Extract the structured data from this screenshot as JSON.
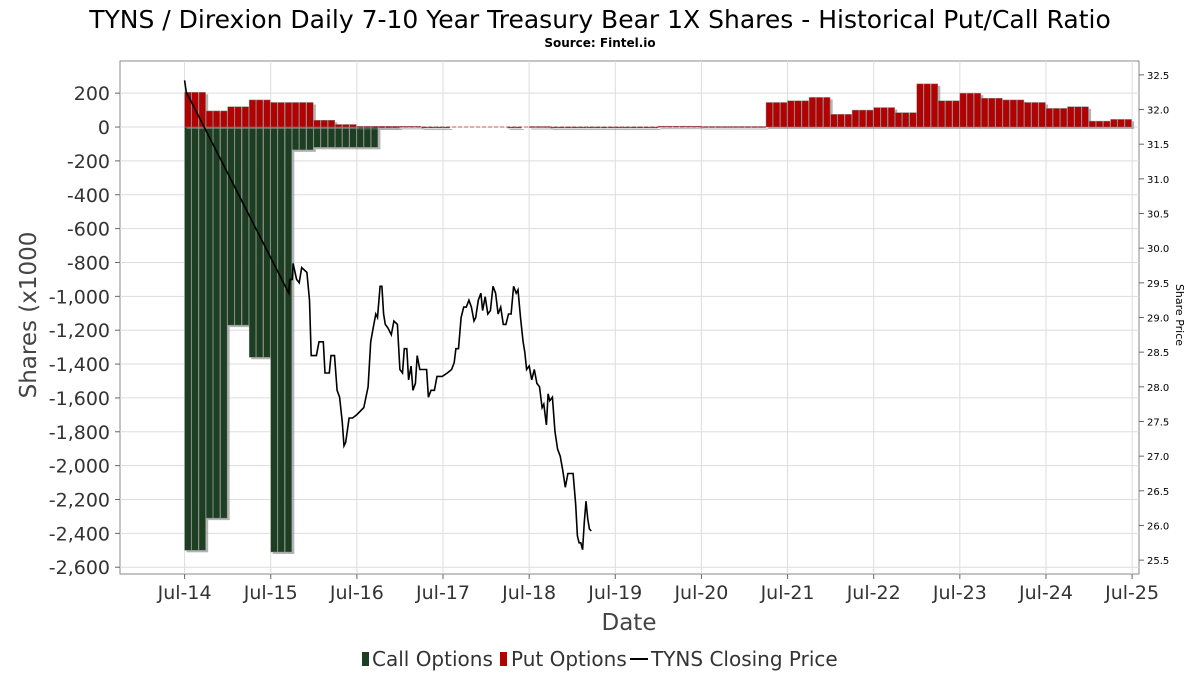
{
  "header": {
    "title": "TYNS / Direxion Daily 7-10 Year Treasury Bear 1X Shares - Historical Put/Call Ratio",
    "subtitle": "Source: Fintel.io"
  },
  "axes": {
    "xlabel": "Date",
    "ylabel": "Shares (x1000",
    "y2label": "Share Price"
  },
  "legend": {
    "call_label": "Call Options",
    "put_label": "Put Options",
    "price_label": "TYNS Closing Price"
  },
  "colors": {
    "call": "#1c3f22",
    "put": "#b30000",
    "price": "#000000",
    "grid": "#dddddd",
    "shadow": "#8c8c8c"
  },
  "chart_data": {
    "type": "bar",
    "title": "TYNS / Direxion Daily 7-10 Year Treasury Bear 1X Shares - Historical Put/Call Ratio",
    "subtitle": "Source: Fintel.io",
    "xlabel": "Date",
    "ylabel": "Shares (x1000",
    "y2label": "Share Price",
    "x_range": [
      2013.75,
      2025.58
    ],
    "ylim": [
      -2640,
      390
    ],
    "y2lim": [
      25.3,
      32.7
    ],
    "x_ticks": [
      {
        "label": "Jul-14",
        "x": 2014.5
      },
      {
        "label": "Jul-15",
        "x": 2015.5
      },
      {
        "label": "Jul-16",
        "x": 2016.5
      },
      {
        "label": "Jul-17",
        "x": 2017.5
      },
      {
        "label": "Jul-18",
        "x": 2018.5
      },
      {
        "label": "Jul-19",
        "x": 2019.5
      },
      {
        "label": "Jul-20",
        "x": 2020.5
      },
      {
        "label": "Jul-21",
        "x": 2021.5
      },
      {
        "label": "Jul-22",
        "x": 2022.5
      },
      {
        "label": "Jul-23",
        "x": 2023.5
      },
      {
        "label": "Jul-24",
        "x": 2024.5
      },
      {
        "label": "Jul-25",
        "x": 2025.5
      }
    ],
    "y_ticks": [
      {
        "label": "200",
        "v": 200
      },
      {
        "label": "0",
        "v": 0
      },
      {
        "label": "-200",
        "v": -200
      },
      {
        "label": "-400",
        "v": -400
      },
      {
        "label": "-600",
        "v": -600
      },
      {
        "label": "-800",
        "v": -800
      },
      {
        "label": "-1,000",
        "v": -1000
      },
      {
        "label": "-1,200",
        "v": -1200
      },
      {
        "label": "-1,400",
        "v": -1400
      },
      {
        "label": "-1,600",
        "v": -1600
      },
      {
        "label": "-1,800",
        "v": -1800
      },
      {
        "label": "-2,000",
        "v": -2000
      },
      {
        "label": "-2,200",
        "v": -2200
      },
      {
        "label": "-2,400",
        "v": -2400
      },
      {
        "label": "-2,600",
        "v": -2600
      }
    ],
    "y2_ticks": [
      {
        "label": "32.5",
        "v": 32.5
      },
      {
        "label": "32.0",
        "v": 32.0
      },
      {
        "label": "31.5",
        "v": 31.5
      },
      {
        "label": "31.0",
        "v": 31.0
      },
      {
        "label": "30.5",
        "v": 30.5
      },
      {
        "label": "30.0",
        "v": 30.0
      },
      {
        "label": "29.5",
        "v": 29.5
      },
      {
        "label": "29.0",
        "v": 29.0
      },
      {
        "label": "28.5",
        "v": 28.5
      },
      {
        "label": "28.0",
        "v": 28.0
      },
      {
        "label": "27.5",
        "v": 27.5
      },
      {
        "label": "27.0",
        "v": 27.0
      },
      {
        "label": "26.5",
        "v": 26.5
      },
      {
        "label": "26.0",
        "v": 26.0
      },
      {
        "label": "25.5",
        "v": 25.5
      }
    ],
    "bar_width": 0.0833,
    "call_series": [
      {
        "x": 2014.5,
        "v": -2500
      },
      {
        "x": 2014.583,
        "v": -2500
      },
      {
        "x": 2014.667,
        "v": -2500
      },
      {
        "x": 2014.75,
        "v": -2310
      },
      {
        "x": 2014.833,
        "v": -2310
      },
      {
        "x": 2014.917,
        "v": -2310
      },
      {
        "x": 2015.0,
        "v": -1170
      },
      {
        "x": 2015.083,
        "v": -1170
      },
      {
        "x": 2015.167,
        "v": -1170
      },
      {
        "x": 2015.25,
        "v": -1360
      },
      {
        "x": 2015.333,
        "v": -1360
      },
      {
        "x": 2015.417,
        "v": -1360
      },
      {
        "x": 2015.5,
        "v": -2510
      },
      {
        "x": 2015.583,
        "v": -2510
      },
      {
        "x": 2015.667,
        "v": -2510
      },
      {
        "x": 2015.75,
        "v": -135
      },
      {
        "x": 2015.833,
        "v": -135
      },
      {
        "x": 2015.917,
        "v": -135
      },
      {
        "x": 2016.0,
        "v": -120
      },
      {
        "x": 2016.083,
        "v": -120
      },
      {
        "x": 2016.167,
        "v": -120
      },
      {
        "x": 2016.25,
        "v": -120
      },
      {
        "x": 2016.333,
        "v": -120
      },
      {
        "x": 2016.417,
        "v": -120
      },
      {
        "x": 2016.5,
        "v": -120
      },
      {
        "x": 2016.583,
        "v": -120
      },
      {
        "x": 2016.667,
        "v": -120
      },
      {
        "x": 2016.75,
        "v": -2
      },
      {
        "x": 2016.833,
        "v": -2
      },
      {
        "x": 2016.917,
        "v": -2
      },
      {
        "x": 2017.25,
        "v": -5
      },
      {
        "x": 2017.333,
        "v": -5
      },
      {
        "x": 2017.417,
        "v": -5
      },
      {
        "x": 2017.5,
        "v": -5
      },
      {
        "x": 2018.25,
        "v": -3
      },
      {
        "x": 2018.333,
        "v": -3
      },
      {
        "x": 2018.75,
        "v": -2
      },
      {
        "x": 2018.833,
        "v": -2
      },
      {
        "x": 2018.917,
        "v": -2
      },
      {
        "x": 2019.0,
        "v": -2
      },
      {
        "x": 2019.083,
        "v": -2
      },
      {
        "x": 2019.167,
        "v": -2
      },
      {
        "x": 2019.25,
        "v": -2
      },
      {
        "x": 2019.333,
        "v": -2
      },
      {
        "x": 2019.417,
        "v": -2
      },
      {
        "x": 2019.5,
        "v": -2
      },
      {
        "x": 2019.583,
        "v": -2
      },
      {
        "x": 2019.667,
        "v": -2
      },
      {
        "x": 2019.75,
        "v": -2
      },
      {
        "x": 2019.833,
        "v": -2
      },
      {
        "x": 2019.917,
        "v": -2
      }
    ],
    "put_series": [
      {
        "x": 2014.5,
        "v": 205
      },
      {
        "x": 2014.583,
        "v": 205
      },
      {
        "x": 2014.667,
        "v": 205
      },
      {
        "x": 2014.75,
        "v": 95
      },
      {
        "x": 2014.833,
        "v": 95
      },
      {
        "x": 2014.917,
        "v": 95
      },
      {
        "x": 2015.0,
        "v": 120
      },
      {
        "x": 2015.083,
        "v": 120
      },
      {
        "x": 2015.167,
        "v": 120
      },
      {
        "x": 2015.25,
        "v": 160
      },
      {
        "x": 2015.333,
        "v": 160
      },
      {
        "x": 2015.417,
        "v": 160
      },
      {
        "x": 2015.5,
        "v": 145
      },
      {
        "x": 2015.583,
        "v": 145
      },
      {
        "x": 2015.667,
        "v": 145
      },
      {
        "x": 2015.75,
        "v": 145
      },
      {
        "x": 2015.833,
        "v": 145
      },
      {
        "x": 2015.917,
        "v": 145
      },
      {
        "x": 2016.0,
        "v": 40
      },
      {
        "x": 2016.083,
        "v": 40
      },
      {
        "x": 2016.167,
        "v": 40
      },
      {
        "x": 2016.25,
        "v": 15
      },
      {
        "x": 2016.333,
        "v": 15
      },
      {
        "x": 2016.417,
        "v": 15
      },
      {
        "x": 2016.5,
        "v": 4
      },
      {
        "x": 2016.583,
        "v": 4
      },
      {
        "x": 2016.667,
        "v": 4
      },
      {
        "x": 2016.75,
        "v": 4
      },
      {
        "x": 2016.833,
        "v": 4
      },
      {
        "x": 2016.917,
        "v": 4
      },
      {
        "x": 2017.0,
        "v": 4
      },
      {
        "x": 2017.083,
        "v": 4
      },
      {
        "x": 2017.167,
        "v": 4
      },
      {
        "x": 2018.5,
        "v": 3
      },
      {
        "x": 2018.583,
        "v": 3
      },
      {
        "x": 2018.667,
        "v": 3
      },
      {
        "x": 2020.0,
        "v": 5
      },
      {
        "x": 2020.083,
        "v": 5
      },
      {
        "x": 2020.167,
        "v": 5
      },
      {
        "x": 2020.25,
        "v": 5
      },
      {
        "x": 2020.333,
        "v": 5
      },
      {
        "x": 2020.417,
        "v": 5
      },
      {
        "x": 2020.5,
        "v": 3
      },
      {
        "x": 2020.583,
        "v": 3
      },
      {
        "x": 2020.667,
        "v": 3
      },
      {
        "x": 2020.75,
        "v": 3
      },
      {
        "x": 2020.833,
        "v": 3
      },
      {
        "x": 2020.917,
        "v": 3
      },
      {
        "x": 2021.0,
        "v": 3
      },
      {
        "x": 2021.083,
        "v": 3
      },
      {
        "x": 2021.167,
        "v": 3
      },
      {
        "x": 2021.25,
        "v": 145
      },
      {
        "x": 2021.333,
        "v": 145
      },
      {
        "x": 2021.417,
        "v": 145
      },
      {
        "x": 2021.5,
        "v": 155
      },
      {
        "x": 2021.583,
        "v": 155
      },
      {
        "x": 2021.667,
        "v": 155
      },
      {
        "x": 2021.75,
        "v": 175
      },
      {
        "x": 2021.833,
        "v": 175
      },
      {
        "x": 2021.917,
        "v": 175
      },
      {
        "x": 2022.0,
        "v": 75
      },
      {
        "x": 2022.083,
        "v": 75
      },
      {
        "x": 2022.167,
        "v": 75
      },
      {
        "x": 2022.25,
        "v": 100
      },
      {
        "x": 2022.333,
        "v": 100
      },
      {
        "x": 2022.417,
        "v": 100
      },
      {
        "x": 2022.5,
        "v": 115
      },
      {
        "x": 2022.583,
        "v": 115
      },
      {
        "x": 2022.667,
        "v": 115
      },
      {
        "x": 2022.75,
        "v": 85
      },
      {
        "x": 2022.833,
        "v": 85
      },
      {
        "x": 2022.917,
        "v": 85
      },
      {
        "x": 2023.0,
        "v": 255
      },
      {
        "x": 2023.083,
        "v": 255
      },
      {
        "x": 2023.167,
        "v": 255
      },
      {
        "x": 2023.25,
        "v": 155
      },
      {
        "x": 2023.333,
        "v": 155
      },
      {
        "x": 2023.417,
        "v": 155
      },
      {
        "x": 2023.5,
        "v": 200
      },
      {
        "x": 2023.583,
        "v": 200
      },
      {
        "x": 2023.667,
        "v": 200
      },
      {
        "x": 2023.75,
        "v": 170
      },
      {
        "x": 2023.833,
        "v": 170
      },
      {
        "x": 2023.917,
        "v": 170
      },
      {
        "x": 2024.0,
        "v": 160
      },
      {
        "x": 2024.083,
        "v": 160
      },
      {
        "x": 2024.167,
        "v": 160
      },
      {
        "x": 2024.25,
        "v": 145
      },
      {
        "x": 2024.333,
        "v": 145
      },
      {
        "x": 2024.417,
        "v": 145
      },
      {
        "x": 2024.5,
        "v": 110
      },
      {
        "x": 2024.583,
        "v": 110
      },
      {
        "x": 2024.667,
        "v": 110
      },
      {
        "x": 2024.75,
        "v": 120
      },
      {
        "x": 2024.833,
        "v": 120
      },
      {
        "x": 2024.917,
        "v": 120
      },
      {
        "x": 2025.0,
        "v": 35
      },
      {
        "x": 2025.083,
        "v": 35
      },
      {
        "x": 2025.167,
        "v": 35
      },
      {
        "x": 2025.25,
        "v": 45
      },
      {
        "x": 2025.333,
        "v": 45
      },
      {
        "x": 2025.417,
        "v": 45
      }
    ],
    "price_series": [
      {
        "x": 2014.5,
        "y": 32.42
      },
      {
        "x": 2014.52,
        "y": 32.25
      },
      {
        "x": 2014.55,
        "y": 32.18
      },
      {
        "x": 2015.71,
        "y": 29.35
      },
      {
        "x": 2015.72,
        "y": 29.55
      },
      {
        "x": 2015.75,
        "y": 29.55
      },
      {
        "x": 2015.76,
        "y": 29.78
      },
      {
        "x": 2015.8,
        "y": 29.55
      },
      {
        "x": 2015.83,
        "y": 29.5
      },
      {
        "x": 2015.86,
        "y": 29.72
      },
      {
        "x": 2015.92,
        "y": 29.65
      },
      {
        "x": 2015.95,
        "y": 29.25
      },
      {
        "x": 2015.97,
        "y": 28.45
      },
      {
        "x": 2016.03,
        "y": 28.45
      },
      {
        "x": 2016.06,
        "y": 28.65
      },
      {
        "x": 2016.11,
        "y": 28.65
      },
      {
        "x": 2016.13,
        "y": 28.2
      },
      {
        "x": 2016.18,
        "y": 28.2
      },
      {
        "x": 2016.2,
        "y": 28.45
      },
      {
        "x": 2016.24,
        "y": 28.45
      },
      {
        "x": 2016.27,
        "y": 27.95
      },
      {
        "x": 2016.3,
        "y": 27.85
      },
      {
        "x": 2016.33,
        "y": 27.5
      },
      {
        "x": 2016.35,
        "y": 27.15
      },
      {
        "x": 2016.37,
        "y": 27.2
      },
      {
        "x": 2016.41,
        "y": 27.55
      },
      {
        "x": 2016.45,
        "y": 27.55
      },
      {
        "x": 2016.5,
        "y": 27.6
      },
      {
        "x": 2016.58,
        "y": 27.7
      },
      {
        "x": 2016.63,
        "y": 28.0
      },
      {
        "x": 2016.66,
        "y": 28.65
      },
      {
        "x": 2016.69,
        "y": 28.85
      },
      {
        "x": 2016.72,
        "y": 29.05
      },
      {
        "x": 2016.74,
        "y": 29.0
      },
      {
        "x": 2016.77,
        "y": 29.45
      },
      {
        "x": 2016.79,
        "y": 29.45
      },
      {
        "x": 2016.81,
        "y": 29.05
      },
      {
        "x": 2016.83,
        "y": 28.9
      },
      {
        "x": 2016.86,
        "y": 28.85
      },
      {
        "x": 2016.9,
        "y": 28.75
      },
      {
        "x": 2016.93,
        "y": 28.95
      },
      {
        "x": 2016.97,
        "y": 28.9
      },
      {
        "x": 2017.0,
        "y": 28.25
      },
      {
        "x": 2017.03,
        "y": 28.2
      },
      {
        "x": 2017.05,
        "y": 28.55
      },
      {
        "x": 2017.08,
        "y": 28.55
      },
      {
        "x": 2017.1,
        "y": 28.1
      },
      {
        "x": 2017.13,
        "y": 28.3
      },
      {
        "x": 2017.15,
        "y": 27.95
      },
      {
        "x": 2017.18,
        "y": 28.05
      },
      {
        "x": 2017.2,
        "y": 28.45
      },
      {
        "x": 2017.23,
        "y": 28.25
      },
      {
        "x": 2017.31,
        "y": 28.25
      },
      {
        "x": 2017.33,
        "y": 27.85
      },
      {
        "x": 2017.36,
        "y": 27.95
      },
      {
        "x": 2017.4,
        "y": 27.95
      },
      {
        "x": 2017.43,
        "y": 28.15
      },
      {
        "x": 2017.49,
        "y": 28.15
      },
      {
        "x": 2017.55,
        "y": 28.2
      },
      {
        "x": 2017.6,
        "y": 28.25
      },
      {
        "x": 2017.63,
        "y": 28.35
      },
      {
        "x": 2017.65,
        "y": 28.55
      },
      {
        "x": 2017.68,
        "y": 28.55
      },
      {
        "x": 2017.71,
        "y": 29.0
      },
      {
        "x": 2017.74,
        "y": 29.15
      },
      {
        "x": 2017.77,
        "y": 29.15
      },
      {
        "x": 2017.8,
        "y": 29.25
      },
      {
        "x": 2017.83,
        "y": 29.15
      },
      {
        "x": 2017.86,
        "y": 28.95
      },
      {
        "x": 2017.88,
        "y": 29.0
      },
      {
        "x": 2017.91,
        "y": 29.25
      },
      {
        "x": 2017.94,
        "y": 29.35
      },
      {
        "x": 2017.96,
        "y": 29.1
      },
      {
        "x": 2017.99,
        "y": 29.3
      },
      {
        "x": 2018.02,
        "y": 29.05
      },
      {
        "x": 2018.05,
        "y": 29.1
      },
      {
        "x": 2018.08,
        "y": 29.45
      },
      {
        "x": 2018.11,
        "y": 29.35
      },
      {
        "x": 2018.14,
        "y": 29.05
      },
      {
        "x": 2018.17,
        "y": 29.15
      },
      {
        "x": 2018.2,
        "y": 28.9
      },
      {
        "x": 2018.23,
        "y": 28.9
      },
      {
        "x": 2018.26,
        "y": 29.05
      },
      {
        "x": 2018.29,
        "y": 29.05
      },
      {
        "x": 2018.32,
        "y": 29.45
      },
      {
        "x": 2018.35,
        "y": 29.35
      },
      {
        "x": 2018.37,
        "y": 29.4
      },
      {
        "x": 2018.4,
        "y": 29.0
      },
      {
        "x": 2018.43,
        "y": 28.65
      },
      {
        "x": 2018.45,
        "y": 28.5
      },
      {
        "x": 2018.47,
        "y": 28.25
      },
      {
        "x": 2018.5,
        "y": 28.3
      },
      {
        "x": 2018.53,
        "y": 28.1
      },
      {
        "x": 2018.56,
        "y": 28.25
      },
      {
        "x": 2018.59,
        "y": 28.05
      },
      {
        "x": 2018.62,
        "y": 28.0
      },
      {
        "x": 2018.65,
        "y": 27.7
      },
      {
        "x": 2018.67,
        "y": 27.75
      },
      {
        "x": 2018.7,
        "y": 27.45
      },
      {
        "x": 2018.72,
        "y": 27.9
      },
      {
        "x": 2018.74,
        "y": 27.8
      },
      {
        "x": 2018.77,
        "y": 27.85
      },
      {
        "x": 2018.8,
        "y": 27.35
      },
      {
        "x": 2018.83,
        "y": 27.1
      },
      {
        "x": 2018.86,
        "y": 27.0
      },
      {
        "x": 2018.89,
        "y": 26.8
      },
      {
        "x": 2018.92,
        "y": 26.55
      },
      {
        "x": 2018.95,
        "y": 26.75
      },
      {
        "x": 2019.01,
        "y": 26.75
      },
      {
        "x": 2019.04,
        "y": 26.3
      },
      {
        "x": 2019.06,
        "y": 25.85
      },
      {
        "x": 2019.08,
        "y": 25.75
      },
      {
        "x": 2019.1,
        "y": 25.75
      },
      {
        "x": 2019.12,
        "y": 25.65
      },
      {
        "x": 2019.14,
        "y": 26.05
      },
      {
        "x": 2019.16,
        "y": 26.35
      },
      {
        "x": 2019.18,
        "y": 26.1
      },
      {
        "x": 2019.2,
        "y": 25.95
      },
      {
        "x": 2019.22,
        "y": 25.92
      }
    ]
  }
}
